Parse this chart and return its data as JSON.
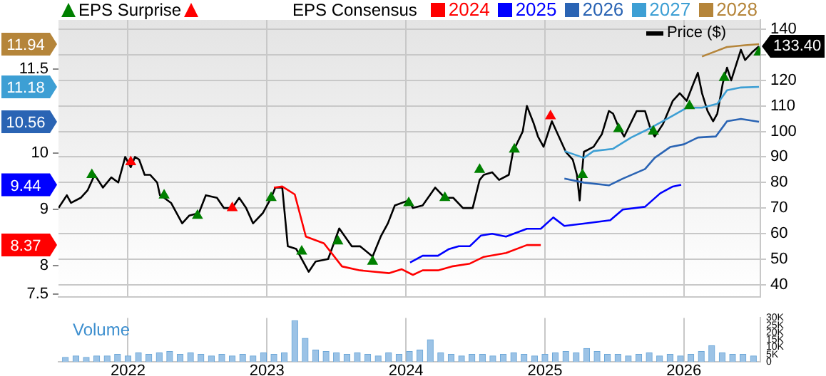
{
  "chart_data": [
    {
      "type": "line",
      "xlim": [
        2021.5,
        2026.55
      ],
      "xticks": [
        2022,
        2023,
        2024,
        2025,
        2026
      ],
      "ylim": [
        7.45,
        12.37
      ],
      "yticks": [
        7.5,
        8,
        8.37,
        9,
        9.44,
        10,
        10.56,
        11.18,
        11.5,
        11.94
      ],
      "y2lim": [
        35.2,
        143.7
      ],
      "y2ticks": [
        40,
        50,
        60,
        70,
        80,
        90,
        100,
        110,
        120,
        {
          "value": 130,
          "label": null
        },
        140
      ],
      "tick_labels": "y",
      "grid": true,
      "legend": "top",
      "legend_title": "EPS Consensus",
      "series": [
        {
          "name": "EPS Surprise",
          "type": "scatter",
          "axis": "y2",
          "marker": "triangle",
          "color": "#008000",
          "x": [
            2021.74,
            2022.26,
            2022.5,
            2023.03,
            2023.25,
            2023.51,
            2023.76,
            2024.02,
            2024.28,
            2024.53,
            2024.78,
            2025.27,
            2025.53,
            2025.78,
            2026.04,
            2026.29,
            2026.54
          ],
          "values": [
            83,
            75,
            67,
            74,
            53,
            57,
            49,
            72,
            74,
            85,
            93,
            83,
            101,
            100,
            110,
            121,
            131
          ]
        },
        {
          "type": "scatter",
          "axis": "y2",
          "marker": "triangle",
          "color": "#ff0000",
          "x": [
            2022.02,
            2022.75,
            2025.04
          ],
          "values": [
            88,
            70,
            106
          ]
        },
        {
          "name": "2024",
          "type": "line",
          "axis": "y",
          "marker": "none",
          "color": "#ff0000",
          "x": [
            2023.05,
            2023.11,
            2023.2,
            2023.28,
            2023.41,
            2023.54,
            2023.67,
            2023.88,
            2023.97,
            2024.05,
            2024.12,
            2024.23,
            2024.33,
            2024.46,
            2024.56,
            2024.72,
            2024.87,
            2024.97
          ],
          "values": [
            9.39,
            9.41,
            9.27,
            8.52,
            8.4,
            7.99,
            7.92,
            7.87,
            7.94,
            7.84,
            7.92,
            7.92,
            7.99,
            8.04,
            8.16,
            8.23,
            8.37,
            8.37
          ]
        },
        {
          "name": "2025",
          "type": "line",
          "axis": "y",
          "marker": "none",
          "color": "#0000ff",
          "x": [
            2024.03,
            2024.12,
            2024.23,
            2024.31,
            2024.38,
            2024.46,
            2024.54,
            2024.62,
            2024.72,
            2024.87,
            2024.97,
            2025.06,
            2025.14,
            2025.31,
            2025.47,
            2025.56,
            2025.72,
            2025.83,
            2025.92,
            2025.98
          ],
          "values": [
            8.06,
            8.18,
            8.18,
            8.3,
            8.35,
            8.35,
            8.54,
            8.57,
            8.52,
            8.66,
            8.66,
            8.86,
            8.71,
            8.76,
            8.81,
            9.0,
            9.05,
            9.29,
            9.41,
            9.44
          ]
        },
        {
          "name": "2026",
          "type": "line",
          "axis": "y",
          "marker": "none",
          "color": "#2a64b4",
          "x": [
            2025.14,
            2025.28,
            2025.46,
            2025.56,
            2025.72,
            2025.79,
            2025.9,
            2026.0,
            2026.1,
            2026.23,
            2026.31,
            2026.41,
            2026.54
          ],
          "values": [
            9.55,
            9.48,
            9.43,
            9.55,
            9.72,
            9.92,
            10.11,
            10.16,
            10.28,
            10.3,
            10.57,
            10.61,
            10.56
          ]
        },
        {
          "name": "2027",
          "type": "line",
          "axis": "y",
          "marker": "none",
          "color": "#3d9fd4",
          "x": [
            2025.14,
            2025.28,
            2025.35,
            2025.49,
            2025.62,
            2025.76,
            2025.9,
            2026.02,
            2026.13,
            2026.24,
            2026.31,
            2026.41,
            2026.54
          ],
          "values": [
            10.04,
            9.92,
            10.04,
            10.08,
            10.28,
            10.45,
            10.64,
            10.81,
            10.81,
            10.88,
            11.12,
            11.17,
            11.18
          ]
        },
        {
          "name": "2028",
          "type": "line",
          "axis": "y",
          "marker": "none",
          "color": "#b5853a",
          "x": [
            2026.13,
            2026.31,
            2026.44,
            2026.54
          ],
          "values": [
            11.72,
            11.89,
            11.92,
            11.94
          ]
        },
        {
          "name": "Price ($)",
          "type": "line",
          "axis": "y2",
          "marker": "none",
          "color": "#000000",
          "x": [
            2021.5,
            2021.56,
            2021.59,
            2021.66,
            2021.71,
            2021.76,
            2021.82,
            2021.88,
            2021.93,
            2021.98,
            2022.02,
            2022.05,
            2022.08,
            2022.12,
            2022.16,
            2022.21,
            2022.23,
            2022.26,
            2022.31,
            2022.39,
            2022.44,
            2022.51,
            2022.56,
            2022.64,
            2022.69,
            2022.75,
            2022.8,
            2022.85,
            2022.9,
            2022.97,
            2023.03,
            2023.06,
            2023.11,
            2023.15,
            2023.21,
            2023.3,
            2023.35,
            2023.44,
            2023.52,
            2023.61,
            2023.67,
            2023.76,
            2023.82,
            2023.87,
            2023.92,
            2024.02,
            2024.05,
            2024.12,
            2024.21,
            2024.28,
            2024.34,
            2024.41,
            2024.48,
            2024.53,
            2024.56,
            2024.62,
            2024.67,
            2024.74,
            2024.77,
            2024.84,
            2024.87,
            2024.92,
            2024.95,
            2024.99,
            2025.05,
            2025.1,
            2025.15,
            2025.2,
            2025.23,
            2025.25,
            2025.26,
            2025.28,
            2025.35,
            2025.41,
            2025.46,
            2025.49,
            2025.52,
            2025.57,
            2025.66,
            2025.72,
            2025.76,
            2025.79,
            2025.85,
            2025.92,
            2025.97,
            2026.02,
            2026.07,
            2026.1,
            2026.13,
            2026.17,
            2026.21,
            2026.24,
            2026.28,
            2026.31,
            2026.34,
            2026.41,
            2026.44,
            2026.49,
            2026.54
          ],
          "values": [
            70,
            75,
            72,
            74,
            77,
            83,
            78,
            82,
            80,
            90,
            86,
            90,
            89,
            83,
            83,
            80,
            75,
            74,
            72,
            64,
            67,
            68,
            75,
            74,
            70,
            70,
            74,
            70,
            64,
            68,
            74,
            78,
            78,
            55,
            54,
            45,
            49,
            50,
            62,
            55,
            55,
            51,
            59,
            64,
            71,
            73,
            70,
            71,
            78,
            74,
            74,
            70,
            70,
            81,
            83,
            84,
            81,
            83,
            92,
            100,
            110,
            103,
            98,
            94,
            104,
            98,
            92,
            89,
            83,
            73,
            80,
            92,
            94,
            99,
            108,
            107,
            103,
            98,
            108,
            108,
            101,
            98,
            103,
            112,
            115,
            112,
            119,
            123,
            115,
            108,
            104,
            107,
            119,
            125,
            120,
            132,
            128,
            131,
            133.4
          ],
          "value_labels": [
            null,
            null,
            null,
            null,
            null,
            null,
            null,
            null,
            null,
            null,
            null,
            null,
            null,
            null,
            null,
            null,
            null,
            null,
            null,
            null,
            null,
            null,
            null,
            null,
            null,
            null,
            null,
            null,
            null,
            null,
            null,
            null,
            null,
            null,
            null,
            null,
            null,
            null,
            null,
            null,
            null,
            null,
            null,
            null,
            null,
            null,
            null,
            null,
            null,
            null,
            null,
            null,
            null,
            null,
            null,
            null,
            null,
            null,
            null,
            null,
            null,
            null,
            null,
            null,
            null,
            null,
            null,
            null,
            null,
            null,
            null,
            null,
            null,
            null,
            null,
            null,
            null,
            null,
            null,
            null,
            null,
            null,
            null,
            null,
            null,
            null,
            null,
            null,
            null,
            null,
            null,
            null,
            null,
            null,
            null,
            null,
            null,
            null,
            "133.40"
          ]
        }
      ]
    },
    {
      "type": "bar",
      "title": "Volume",
      "color": "#9cc3e6",
      "xlim": [
        2021.5,
        2026.55
      ],
      "xticks": [
        2022,
        2023,
        2024,
        2025,
        2026
      ],
      "ylim": [
        0,
        30
      ],
      "yticks": [
        0,
        {
          "value": 5,
          "label": "5K"
        },
        {
          "value": 10,
          "label": "10K"
        },
        {
          "value": 15,
          "label": "15K"
        },
        {
          "value": 20,
          "label": "20K"
        },
        {
          "value": 25,
          "label": "25K"
        },
        {
          "value": 30,
          "label": "30K"
        }
      ],
      "grid": "x",
      "x": [
        2021.55,
        2021.625,
        2021.7,
        2021.775,
        2021.85,
        2021.925,
        2022,
        2022.075,
        2022.15,
        2022.225,
        2022.3,
        2022.375,
        2022.45,
        2022.525,
        2022.6,
        2022.675,
        2022.75,
        2022.825,
        2022.9,
        2022.975,
        2023.05,
        2023.125,
        2023.2,
        2023.275,
        2023.35,
        2023.425,
        2023.5,
        2023.575,
        2023.65,
        2023.725,
        2023.8,
        2023.875,
        2023.95,
        2024.025,
        2024.1,
        2024.175,
        2024.25,
        2024.325,
        2024.4,
        2024.475,
        2024.55,
        2024.625,
        2024.7,
        2024.775,
        2024.85,
        2024.925,
        2025,
        2025.075,
        2025.15,
        2025.225,
        2025.3,
        2025.375,
        2025.45,
        2025.525,
        2025.6,
        2025.675,
        2025.75,
        2025.825,
        2025.9,
        2025.975,
        2026.05,
        2026.125,
        2026.2,
        2026.275,
        2026.35,
        2026.425,
        2026.5
      ],
      "values": [
        3,
        4,
        3,
        4,
        4,
        5,
        4,
        6,
        5,
        6,
        7,
        5,
        6,
        5,
        4,
        5,
        4,
        5,
        4,
        6,
        5,
        6,
        28,
        16,
        8,
        7,
        6,
        5,
        6,
        5,
        4,
        6,
        5,
        7,
        8,
        15,
        6,
        5,
        4,
        5,
        5,
        4,
        5,
        6,
        5,
        4,
        5,
        6,
        7,
        6,
        9,
        7,
        5,
        5,
        4,
        5,
        6,
        4,
        5,
        4,
        5,
        7,
        11,
        6,
        5,
        5,
        4
      ]
    }
  ]
}
